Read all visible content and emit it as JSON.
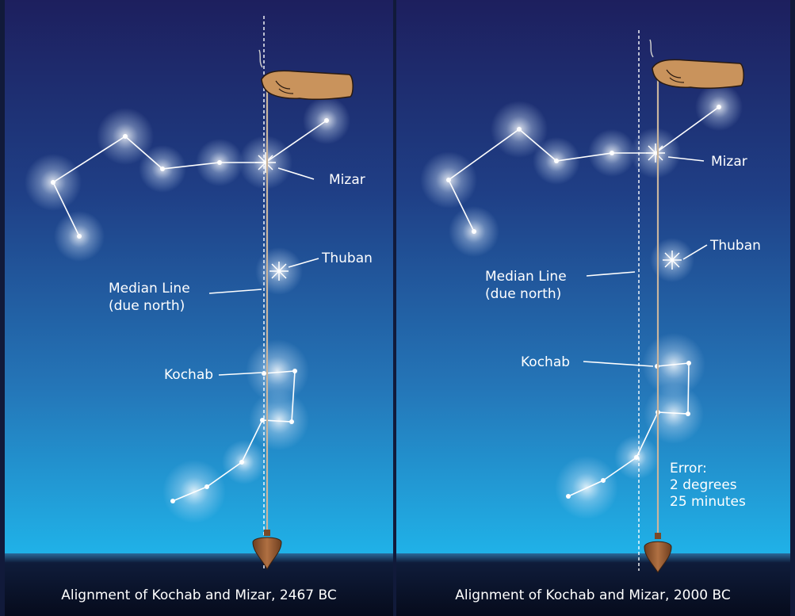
{
  "colors": {
    "sky_top": "#1d1f5e",
    "sky_bottom": "#1fb0e6",
    "ground": "#0c1226",
    "hand": "#c9935c",
    "plumb_bob": "#9a6036",
    "line": "#ffffff"
  },
  "panels": [
    {
      "caption": "Alignment of Kochab and Mizar, 2467 BC",
      "labels": {
        "mizar": "Mizar",
        "thuban": "Thuban",
        "median_line_1": "Median Line",
        "median_line_2": "(due north)",
        "kochab": "Kochab"
      }
    },
    {
      "caption": "Alignment of Kochab and Mizar, 2000 BC",
      "labels": {
        "mizar": "Mizar",
        "thuban": "Thuban",
        "median_line_1": "Median Line",
        "median_line_2": "(due north)",
        "kochab": "Kochab",
        "error_1": "Error:",
        "error_2": "2 degrees",
        "error_3": "25 minutes"
      }
    }
  ],
  "icons": {
    "hand": "hand-icon",
    "plumb_bob": "plumb-bob-icon"
  }
}
